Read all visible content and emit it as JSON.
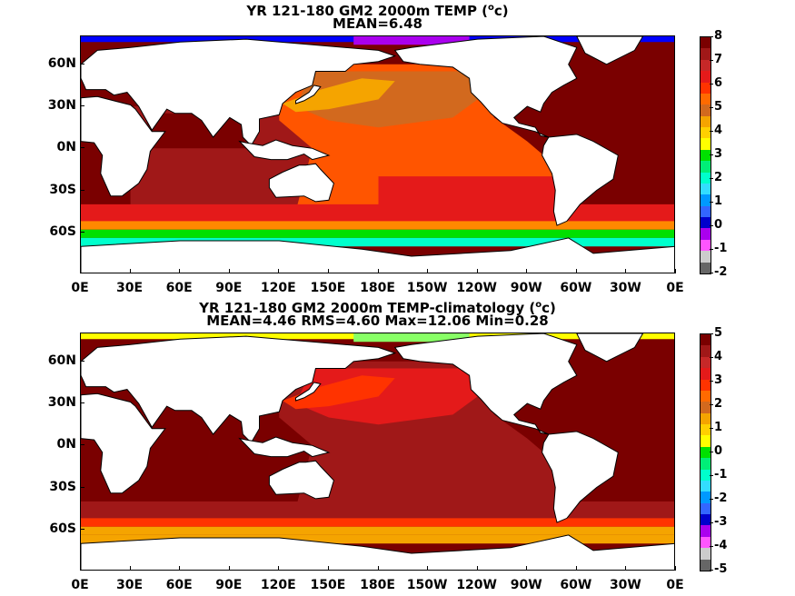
{
  "panels": [
    {
      "title_line1": "YR 121-180 GM2 2000m TEMP (",
      "title_sup": "o",
      "title_unit_tail": "c)",
      "title_line2": "MEAN=6.48",
      "colorbar": {
        "labels": [
          "8",
          "7",
          "6",
          "5",
          "4",
          "3",
          "2",
          "1",
          "0",
          "-1",
          "-2"
        ],
        "colors": [
          "#7a0000",
          "#a01818",
          "#c62828",
          "#e41a1a",
          "#ff3300",
          "#ff6a00",
          "#d2691e",
          "#f5a400",
          "#ffd000",
          "#ffff00",
          "#00e000",
          "#00ee77",
          "#00ffcc",
          "#33ddff",
          "#0099ff",
          "#3366ff",
          "#0000cc",
          "#aa00ee",
          "#ff55ff",
          "#cccccc",
          "#666666"
        ]
      },
      "regions": {
        "north_pacific": "#d2691e",
        "kuroshio": "#f5a400",
        "tropical_pacific": "#ff5500",
        "south_pacific": "#e41a1a",
        "atlantic": "#7a0000",
        "indian": "#a01818",
        "indian_north": "#7a0000",
        "southern_band": "#e41a1a",
        "acc_orange": "#ff8800",
        "acc_green": "#00e000",
        "acc_cyan": "#00ffcc",
        "arctic": "#0000ff",
        "arctic2": "#aa00ee"
      }
    },
    {
      "title_line1": "YR 121-180 GM2 2000m TEMP-climatology (",
      "title_sup": "o",
      "title_unit_tail": "c)",
      "title_line2": "MEAN=4.46   RMS=4.60   Max=12.06   Min=0.28",
      "colorbar": {
        "labels": [
          "5",
          "4",
          "3",
          "2",
          "1",
          "0",
          "-1",
          "-2",
          "-3",
          "-4",
          "-5"
        ],
        "colors": [
          "#7a0000",
          "#a01818",
          "#c62828",
          "#e41a1a",
          "#ff3300",
          "#ff6a00",
          "#d2691e",
          "#f5a400",
          "#ffd000",
          "#ffff00",
          "#00e000",
          "#00ee77",
          "#00ffcc",
          "#33ddff",
          "#0099ff",
          "#3366ff",
          "#0000cc",
          "#aa00ee",
          "#ff55ff",
          "#cccccc",
          "#666666"
        ]
      },
      "regions": {
        "north_pacific": "#e41a1a",
        "kuroshio": "#ff3300",
        "tropical_pacific": "#a01818",
        "south_pacific": "#a01818",
        "atlantic": "#7a0000",
        "indian": "#7a0000",
        "indian_north": "#7a0000",
        "southern_band": "#a01818",
        "acc_orange": "#ff3300",
        "acc_green": "#f5a400",
        "acc_cyan": "#f5a400",
        "arctic": "#ffff00",
        "arctic2": "#88ff66"
      }
    }
  ],
  "y_axis_labels": [
    "60N",
    "30N",
    "0N",
    "30S",
    "60S"
  ],
  "x_axis_labels": [
    "0E",
    "30E",
    "60E",
    "90E",
    "120E",
    "150E",
    "180E",
    "150W",
    "120W",
    "90W",
    "60W",
    "30W",
    "0E"
  ]
}
